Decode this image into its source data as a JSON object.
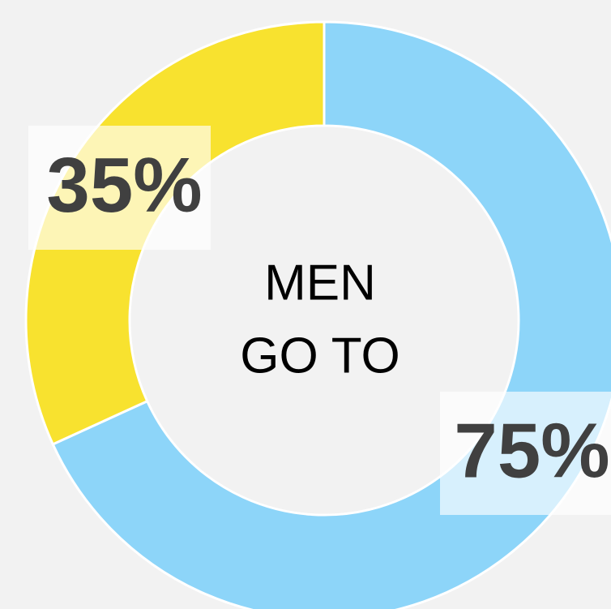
{
  "chart_data": {
    "type": "donut",
    "values": [
      75,
      35
    ],
    "value_labels": [
      "75%",
      "35%"
    ],
    "colors": [
      "#8dd5f9",
      "#f8e22f"
    ],
    "center_text": [
      "MEN",
      "GO TO"
    ]
  }
}
